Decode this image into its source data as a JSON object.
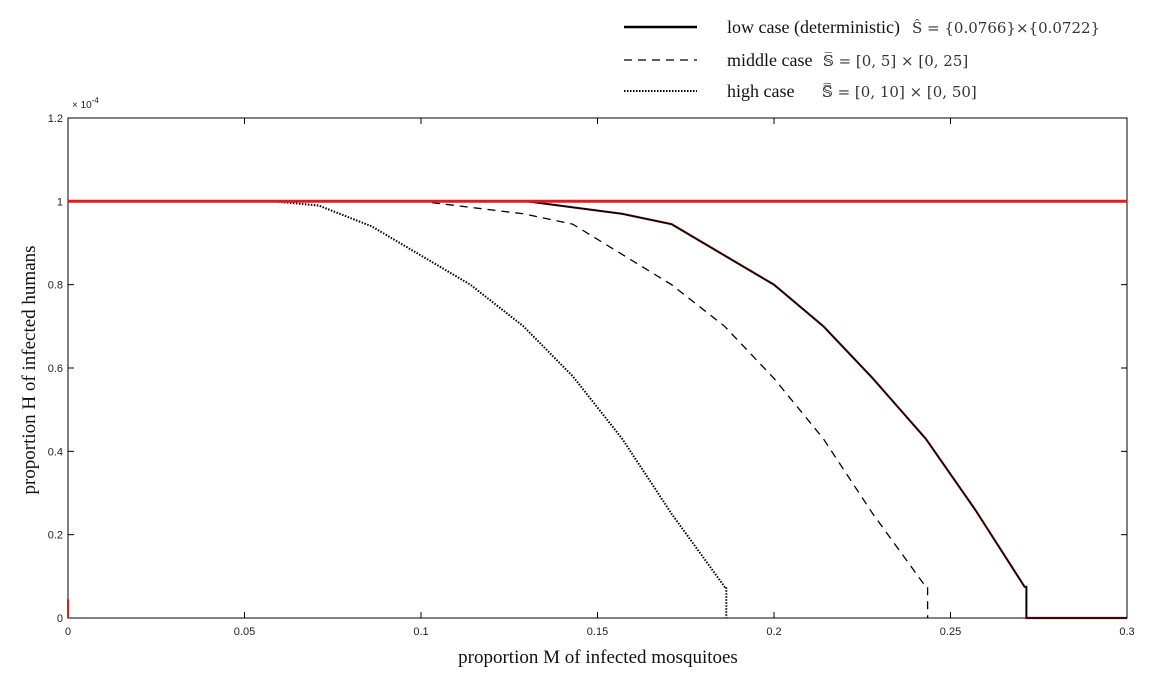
{
  "chart_data": {
    "type": "line",
    "xlabel": "proportion M of infected mosquitoes",
    "ylabel": "proportion H of infected humans",
    "xlim": [
      0,
      0.3
    ],
    "ylim": [
      0,
      0.00012
    ],
    "xticks": [
      0,
      0.05,
      0.1,
      0.15,
      0.2,
      0.25,
      0.3
    ],
    "xtick_labels": [
      "0",
      "0.05",
      "0.1",
      "0.15",
      "0.2",
      "0.25",
      "0.3"
    ],
    "yticks": [
      0,
      2e-05,
      4e-05,
      6e-05,
      8e-05,
      0.0001,
      0.00012
    ],
    "ytick_labels": [
      "0",
      "0.2",
      "0.4",
      "0.6",
      "0.8",
      "1",
      "1.2"
    ],
    "y_exponent_label": "× 10",
    "y_exponent_power": "-4",
    "grid": false,
    "legend_position": "top-right, outside the axes",
    "series": [
      {
        "name": "low case (deterministic)",
        "set": "Ŝ = {0.0766}×{0.0722}",
        "style": "solid",
        "color": "#000000",
        "overlay_color": "#8b1a1a",
        "x": [
          0,
          0.13,
          0.157,
          0.171,
          0.2,
          0.214,
          0.228,
          0.243,
          0.257,
          0.271,
          0.2715,
          0.2715,
          0.3
        ],
        "y": [
          0.0001,
          0.0001,
          9.7e-05,
          9.45e-05,
          8e-05,
          7e-05,
          5.75e-05,
          4.3e-05,
          2.6e-05,
          7.5e-06,
          7.5e-06,
          0,
          0
        ]
      },
      {
        "name": "middle case",
        "set": "𝕊̅ = [0, 5] × [0, 25]",
        "style": "dashed",
        "color": "#000000",
        "x": [
          0,
          0.1,
          0.129,
          0.143,
          0.171,
          0.186,
          0.2,
          0.214,
          0.228,
          0.243,
          0.2435,
          0.2435
        ],
        "y": [
          0.0001,
          0.0001,
          9.7e-05,
          9.45e-05,
          8e-05,
          7e-05,
          5.75e-05,
          4.3e-05,
          2.5e-05,
          7.5e-06,
          7.5e-06,
          0
        ]
      },
      {
        "name": "high case",
        "set": "𝕊̿ = [0, 10] × [0, 50]",
        "style": "dotted",
        "color": "#000000",
        "x": [
          0,
          0.058,
          0.071,
          0.086,
          0.1,
          0.114,
          0.129,
          0.143,
          0.157,
          0.171,
          0.186,
          0.1865,
          0.1865
        ],
        "y": [
          0.0001,
          0.0001,
          9.9e-05,
          9.4e-05,
          8.7e-05,
          8e-05,
          7e-05,
          5.8e-05,
          4.3e-05,
          2.5e-05,
          7.5e-06,
          7.5e-06,
          0
        ]
      },
      {
        "style": "solid-thick",
        "color": "#e31a1c",
        "x": [
          0,
          0.3
        ],
        "y": [
          0.0001,
          0.0001
        ]
      }
    ],
    "annotations": [
      {
        "text": "",
        "style": "short red tick at origin",
        "color": "#e31a1c",
        "x": 0,
        "y": 4.5e-06
      }
    ]
  }
}
